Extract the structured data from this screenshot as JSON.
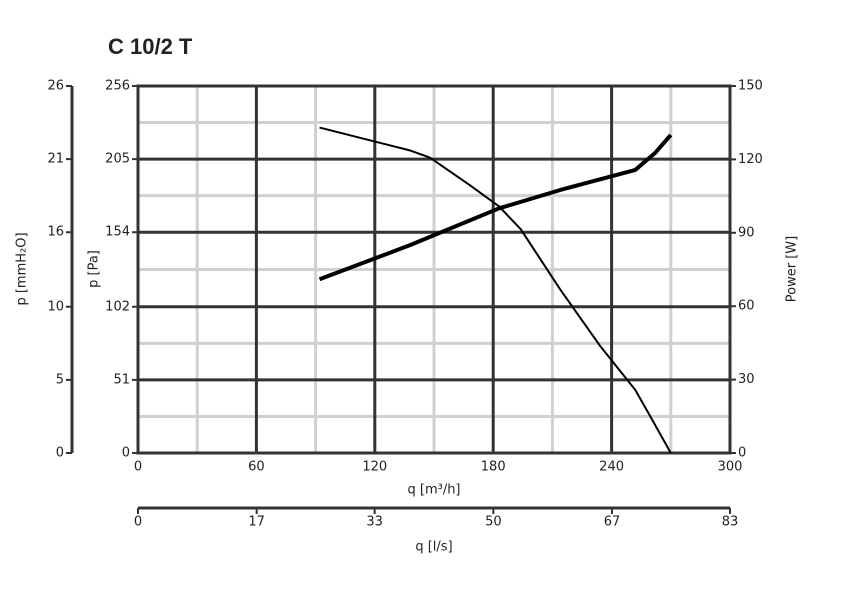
{
  "chart_data": {
    "type": "line",
    "title": "C 10/2 T",
    "x_label": "q [m³/h]",
    "x2_label": "q [l/s]",
    "y_label": "p [Pa]",
    "y2_label": "Power [W]",
    "y3_label": "p [mmH₂O]",
    "xlim": [
      0,
      300
    ],
    "xticks": [
      0,
      60,
      120,
      180,
      240,
      300
    ],
    "x2lim": [
      0,
      83.3
    ],
    "x2ticks": [
      0,
      {
        "value": 16.7,
        "label": "17"
      },
      {
        "value": 33.3,
        "label": "33"
      },
      50,
      {
        "value": 66.7,
        "label": "67"
      },
      {
        "value": 83.3,
        "label": "83"
      }
    ],
    "ylim": [
      0,
      256
    ],
    "yticks": [
      0,
      51,
      102,
      154,
      205,
      256
    ],
    "y2lim": [
      0,
      150
    ],
    "y2ticks": [
      0,
      30,
      60,
      90,
      120,
      150
    ],
    "y3lim": [
      0,
      26.1
    ],
    "y3ticks": [
      0,
      {
        "value": 5.2,
        "label": "5"
      },
      {
        "value": 10.4,
        "label": "10"
      },
      {
        "value": 15.7,
        "label": "16"
      },
      {
        "value": 20.9,
        "label": "21"
      },
      {
        "value": 26.1,
        "label": "26"
      }
    ],
    "grid": true,
    "minor_grid": true,
    "series": [
      {
        "color": "#000000",
        "width": 2,
        "x": [
          92,
          138,
          148,
          168,
          183,
          194,
          214,
          234,
          252,
          259,
          270
        ],
        "values": [
          227,
          211,
          206,
          187,
          172,
          156,
          114,
          75,
          44,
          27,
          0
        ]
      },
      {
        "color": "#000000",
        "width": 4,
        "axis": "y2",
        "x": [
          92,
          138,
          183,
          214,
          252,
          262,
          270
        ],
        "values": [
          71,
          85,
          100,
          107.5,
          115.7,
          122.6,
          130
        ]
      }
    ]
  }
}
